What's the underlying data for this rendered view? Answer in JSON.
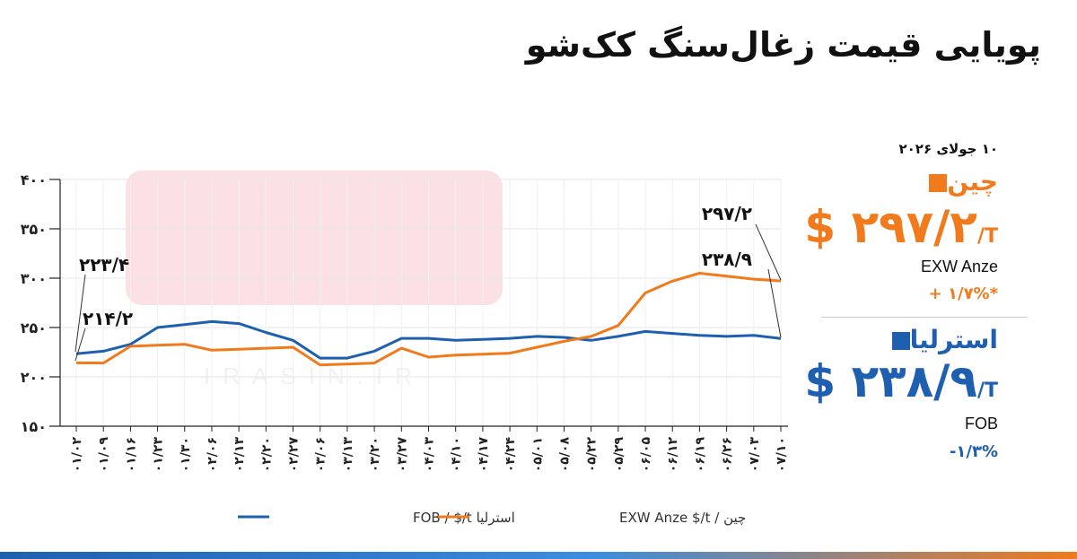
{
  "title": "پویایی قیمت زغال‌سنگ کک‌شو",
  "panel": {
    "date": "۱۰ جولای ۲۰۲۶",
    "china": {
      "name": "چین",
      "value": "$ ۲۹۷/۲",
      "unit": "/T",
      "basis": "EXW Anze",
      "change": "+ ۱/۷%*",
      "color": "#f07a1c"
    },
    "australia": {
      "name": "استرلیا",
      "value": "$ ۲۳۸/۹",
      "unit": "/T",
      "basis": "FOB",
      "change": "-۱/۳%",
      "color": "#1f5fb0"
    }
  },
  "watermark": "IRASIN.IR",
  "chart_data": {
    "type": "line",
    "categories": [
      "۰۱/۰۲",
      "۰۱/۰۹",
      "۰۱/۱۶",
      "۰۱/۲۳",
      "۰۱/۳۰",
      "۰۲/۰۶",
      "۰۲/۱۳",
      "۰۲/۲۰",
      "۰۲/۲۷",
      "۰۳/۰۶",
      "۰۳/۱۳",
      "۰۳/۲۰",
      "۰۳/۲۷",
      "۰۴/۰۳",
      "۰۴/۱۰",
      "۰۴/۱۷",
      "۰۴/۲۴",
      "۰۵/۰۱",
      "۰۵/۰۸",
      "۰۵/۲۲",
      "۰۵/۲۹",
      "۰۶/۰۵",
      "۰۶/۱۲",
      "۰۶/۱۹",
      "۰۶/۲۶",
      "۰۷/۰۳",
      "۰۷/۱۰"
    ],
    "series": [
      {
        "name": "استرلیا FOB / $/t",
        "color": "#1f5fb0",
        "values": [
          223.4,
          226,
          233,
          250,
          253,
          256,
          254,
          245,
          237,
          219,
          219,
          226,
          239,
          239,
          237,
          238,
          239,
          241,
          240,
          237,
          241,
          246,
          244,
          242,
          241,
          242,
          238.9
        ]
      },
      {
        "name": "چین / EXW Anze $/t",
        "color": "#f07a1c",
        "values": [
          214.2,
          214,
          231,
          232,
          233,
          227,
          228,
          229,
          230,
          212,
          213,
          214,
          229,
          220,
          222,
          223,
          224,
          230,
          236,
          241,
          252,
          285,
          297,
          305,
          302,
          299,
          297.2
        ]
      }
    ],
    "ylim": [
      150,
      400
    ],
    "yticks": [
      150,
      200,
      250,
      300,
      350,
      400
    ],
    "ytick_labels": [
      "۱۵۰",
      "۲۰۰",
      "۲۵۰",
      "۳۰۰",
      "۳۵۰",
      "۴۰۰"
    ],
    "annotations": [
      {
        "text": "۲۲۳/۴",
        "series": 0,
        "index": 0
      },
      {
        "text": "۲۱۴/۲",
        "series": 1,
        "index": 0
      },
      {
        "text": "۲۹۷/۲",
        "series": 1,
        "index": 26
      },
      {
        "text": "۲۳۸/۹",
        "series": 0,
        "index": 26
      }
    ],
    "legend": {
      "placement": "bottom-center"
    },
    "grid": true
  }
}
